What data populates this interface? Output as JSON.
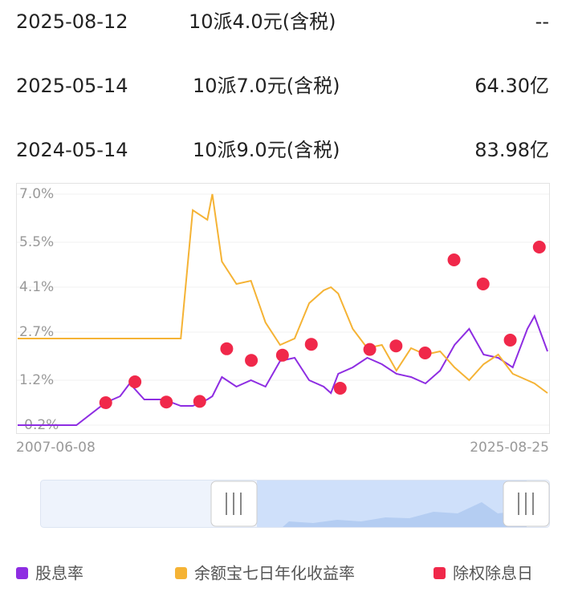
{
  "table": {
    "rows": [
      [
        "2025-08-12",
        "10派4.0元(含税)",
        "--"
      ],
      [
        "2025-05-14",
        "10派7.0元(含税)",
        "64.30亿"
      ],
      [
        "2024-05-14",
        "10派9.0元(含税)",
        "83.98亿"
      ]
    ]
  },
  "chart_data": {
    "type": "line",
    "x": [
      "2007-06-08",
      "2008-06-15",
      "2009-06-15",
      "2010-06-15",
      "2010-12-15",
      "2011-04-15",
      "2011-10-15",
      "2012-06-15",
      "2013-01-15",
      "2013-06-15",
      "2013-12-15",
      "2014-02-15",
      "2014-06-15",
      "2014-12-15",
      "2015-06-15",
      "2015-12-15",
      "2016-06-15",
      "2016-12-15",
      "2017-06-15",
      "2017-12-15",
      "2018-03-15",
      "2018-06-15",
      "2018-12-15",
      "2019-06-15",
      "2019-12-15",
      "2020-06-15",
      "2020-12-15",
      "2021-06-15",
      "2021-12-15",
      "2022-06-15",
      "2022-12-15",
      "2023-06-15",
      "2023-12-15",
      "2024-06-15",
      "2024-12-15",
      "2025-03-15",
      "2025-08-25"
    ],
    "xlim": [
      "2007-06-08",
      "2025-08-25"
    ],
    "ylim": [
      -0.2,
      7.0
    ],
    "yticks": [
      {
        "value": 7.0,
        "label": "7.0%"
      },
      {
        "value": 5.5,
        "label": "5.5%"
      },
      {
        "value": 4.1,
        "label": "4.1%"
      },
      {
        "value": 2.7,
        "label": "2.7%"
      },
      {
        "value": 1.2,
        "label": "1.2%"
      },
      {
        "value": -0.2,
        "label": "-0.2%"
      }
    ],
    "grid": true,
    "series": [
      {
        "name": "股息率",
        "color": "#8e2de2",
        "values": [
          -0.2,
          -0.2,
          -0.2,
          0.5,
          0.7,
          1.1,
          0.6,
          0.6,
          0.4,
          0.4,
          0.6,
          0.7,
          1.3,
          1.0,
          1.2,
          1.0,
          1.8,
          1.9,
          1.2,
          1.0,
          0.8,
          1.4,
          1.6,
          1.9,
          1.7,
          1.4,
          1.3,
          1.1,
          1.5,
          2.3,
          2.8,
          2.0,
          1.9,
          1.6,
          2.8,
          3.2,
          2.1
        ]
      },
      {
        "name": "余额宝七日年化收益率",
        "color": "#f5b335",
        "values": [
          2.5,
          2.5,
          2.5,
          2.5,
          2.5,
          2.5,
          2.5,
          2.5,
          2.5,
          6.5,
          6.2,
          7.0,
          4.9,
          4.2,
          4.3,
          3.0,
          2.3,
          2.5,
          3.6,
          4.0,
          4.1,
          3.9,
          2.8,
          2.2,
          2.3,
          1.5,
          2.2,
          2.0,
          2.1,
          1.6,
          1.2,
          1.7,
          2.0,
          1.4,
          1.2,
          1.1,
          0.8
        ]
      },
      {
        "name": "除权除息日",
        "color": "#f0284a",
        "type": "scatter",
        "x": [
          "2010-06-18",
          "2011-06-20",
          "2012-07-18",
          "2013-09-10",
          "2014-08-15",
          "2015-06-20",
          "2016-07-15",
          "2017-07-12",
          "2018-07-10",
          "2019-07-16",
          "2020-06-10",
          "2021-06-10",
          "2022-06-08",
          "2023-06-08",
          "2024-05-14",
          "2025-05-14"
        ],
        "values": [
          0.5,
          1.15,
          0.52,
          0.54,
          2.18,
          1.82,
          1.98,
          2.32,
          0.95,
          2.16,
          2.27,
          2.05,
          4.95,
          4.2,
          2.45,
          5.35
        ]
      }
    ]
  }
}
